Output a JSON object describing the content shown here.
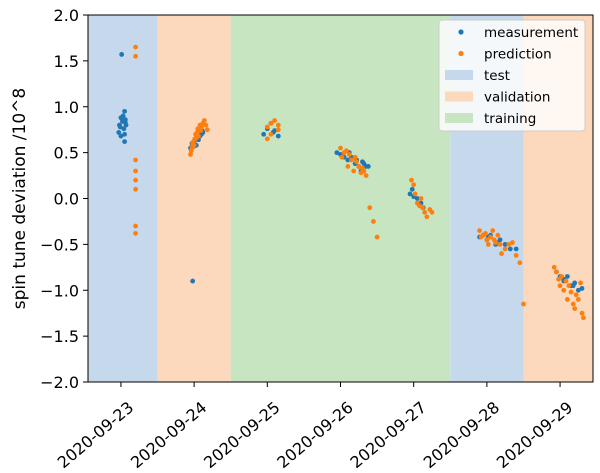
{
  "chart_data": {
    "type": "scatter",
    "title": "",
    "xlabel": "",
    "ylabel": "spin tune deviation /10^8",
    "ylim": [
      -2.0,
      2.0
    ],
    "xlim": [
      -0.45,
      6.45
    ],
    "x_unit": "days since 2020-09-23",
    "grid": false,
    "legend_position": "top-right",
    "x_ticks": [
      {
        "value": 0,
        "label": "2020-09-23"
      },
      {
        "value": 1,
        "label": "2020-09-24"
      },
      {
        "value": 2,
        "label": "2020-09-25"
      },
      {
        "value": 3,
        "label": "2020-09-26"
      },
      {
        "value": 4,
        "label": "2020-09-27"
      },
      {
        "value": 5,
        "label": "2020-09-28"
      },
      {
        "value": 6,
        "label": "2020-09-29"
      }
    ],
    "y_ticks": [
      {
        "value": 2.0,
        "label": "2.0"
      },
      {
        "value": 1.5,
        "label": "1.5"
      },
      {
        "value": 1.0,
        "label": "1.0"
      },
      {
        "value": 0.5,
        "label": "0.5"
      },
      {
        "value": 0.0,
        "label": "0.0"
      },
      {
        "value": -0.5,
        "label": "−0.5"
      },
      {
        "value": -1.0,
        "label": "−1.0"
      },
      {
        "value": -1.5,
        "label": "−1.5"
      },
      {
        "value": -2.0,
        "label": "−2.0"
      }
    ],
    "regions": [
      {
        "name": "test",
        "x0": -0.45,
        "x1": 0.5,
        "color": "#c6d9ec"
      },
      {
        "name": "validation",
        "x0": 0.5,
        "x1": 1.5,
        "color": "#fcd8bd"
      },
      {
        "name": "training",
        "x0": 1.5,
        "x1": 4.5,
        "color": "#c7e5c1"
      },
      {
        "name": "test",
        "x0": 4.5,
        "x1": 5.5,
        "color": "#c6d9ec"
      },
      {
        "name": "validation",
        "x0": 5.5,
        "x1": 6.45,
        "color": "#fcd8bd"
      }
    ],
    "series": [
      {
        "name": "measurement",
        "color": "#1f77b4",
        "x": [
          -0.03,
          -0.02,
          0.0,
          0.02,
          0.04,
          0.06,
          -0.01,
          0.03,
          0.05,
          0.07,
          0.01,
          0.05,
          0.0,
          0.06,
          0.05,
          0.95,
          0.97,
          1.0,
          1.03,
          1.06,
          1.1,
          1.12,
          0.98,
          1.05,
          1.08,
          1.11,
          1.0,
          1.95,
          2.0,
          2.05,
          2.08,
          2.1,
          2.15,
          2.95,
          3.0,
          3.05,
          3.1,
          3.12,
          3.2,
          3.25,
          3.3,
          3.35,
          3.15,
          3.22,
          3.28,
          3.32,
          3.38,
          3.95,
          3.98,
          4.05,
          4.1,
          4.13,
          4.0,
          4.9,
          4.95,
          5.0,
          5.05,
          5.12,
          5.18,
          5.25,
          5.32,
          5.4,
          5.02,
          5.15,
          5.95,
          6.0,
          6.05,
          6.1,
          6.15,
          6.2,
          6.25,
          6.3,
          6.05,
          6.18
        ],
        "y": [
          0.72,
          0.8,
          0.88,
          0.84,
          0.76,
          0.83,
          0.78,
          0.9,
          0.7,
          0.8,
          1.57,
          0.95,
          0.68,
          0.86,
          0.62,
          0.55,
          0.6,
          0.62,
          0.58,
          0.64,
          0.7,
          0.72,
          -0.9,
          0.66,
          0.68,
          0.74,
          0.57,
          0.7,
          0.76,
          0.82,
          0.72,
          0.74,
          0.68,
          0.5,
          0.48,
          0.45,
          0.42,
          0.5,
          0.38,
          0.35,
          0.4,
          0.35,
          0.45,
          0.42,
          0.3,
          0.38,
          0.35,
          0.05,
          0.1,
          0.0,
          -0.05,
          -0.1,
          0.02,
          -0.42,
          -0.4,
          -0.45,
          -0.4,
          -0.5,
          -0.45,
          -0.5,
          -0.55,
          -0.55,
          -0.42,
          -0.48,
          -0.8,
          -0.85,
          -0.9,
          -0.85,
          -0.95,
          -0.92,
          -1.0,
          -0.98,
          -0.88,
          -0.95
        ]
      },
      {
        "name": "prediction",
        "color": "#ff7f0e",
        "x": [
          0.2,
          0.2,
          0.2,
          0.2,
          0.2,
          0.2,
          0.2,
          0.2,
          0.95,
          0.96,
          0.97,
          0.98,
          0.99,
          1.0,
          1.01,
          1.02,
          1.03,
          1.04,
          1.05,
          1.06,
          1.07,
          1.08,
          1.09,
          1.1,
          1.12,
          1.14,
          1.16,
          1.18,
          2.0,
          2.0,
          2.05,
          2.05,
          2.1,
          2.15,
          2.15,
          3.0,
          3.02,
          3.05,
          3.08,
          3.1,
          3.12,
          3.15,
          3.18,
          3.2,
          3.22,
          3.25,
          3.28,
          3.3,
          3.32,
          3.35,
          3.4,
          3.45,
          3.5,
          3.97,
          4.0,
          4.02,
          4.05,
          4.08,
          4.1,
          4.12,
          4.15,
          4.18,
          4.22,
          4.25,
          4.9,
          4.92,
          4.95,
          4.98,
          5.0,
          5.02,
          5.05,
          5.08,
          5.1,
          5.12,
          5.15,
          5.18,
          5.2,
          5.25,
          5.3,
          5.35,
          5.4,
          5.45,
          5.5,
          5.92,
          5.95,
          5.98,
          6.0,
          6.02,
          6.05,
          6.08,
          6.1,
          6.12,
          6.15,
          6.18,
          6.2,
          6.22,
          6.25,
          6.28,
          6.3,
          6.32
        ],
        "y": [
          1.55,
          1.65,
          0.3,
          0.42,
          0.2,
          0.1,
          -0.3,
          -0.38,
          0.48,
          0.52,
          0.55,
          0.6,
          0.62,
          0.58,
          0.65,
          0.7,
          0.66,
          0.72,
          0.76,
          0.68,
          0.75,
          0.8,
          0.74,
          0.78,
          0.82,
          0.85,
          0.8,
          0.75,
          0.65,
          0.78,
          0.82,
          0.7,
          0.85,
          0.8,
          0.75,
          0.55,
          0.45,
          0.5,
          0.52,
          0.35,
          0.48,
          0.42,
          0.3,
          0.45,
          0.4,
          0.35,
          0.28,
          0.33,
          0.3,
          0.25,
          -0.1,
          -0.25,
          -0.42,
          0.2,
          0.15,
          0.05,
          -0.05,
          -0.08,
          0.0,
          -0.1,
          -0.15,
          -0.2,
          -0.12,
          -0.15,
          -0.35,
          -0.42,
          -0.4,
          -0.38,
          -0.45,
          -0.5,
          -0.42,
          -0.35,
          -0.45,
          -0.48,
          -0.4,
          -0.5,
          -0.6,
          -0.55,
          -0.5,
          -0.48,
          -0.62,
          -0.7,
          -1.15,
          -0.75,
          -0.8,
          -0.88,
          -0.95,
          -0.85,
          -1.0,
          -0.9,
          -1.1,
          -0.95,
          -1.02,
          -1.15,
          -1.2,
          -1.05,
          -1.1,
          -0.92,
          -1.25,
          -1.3
        ]
      }
    ]
  },
  "legend": {
    "items": [
      {
        "label": "measurement",
        "kind": "marker",
        "color": "#1f77b4"
      },
      {
        "label": "prediction",
        "kind": "marker",
        "color": "#ff7f0e"
      },
      {
        "label": "test",
        "kind": "patch",
        "color": "#c6d9ec"
      },
      {
        "label": "validation",
        "kind": "patch",
        "color": "#fcd8bd"
      },
      {
        "label": "training",
        "kind": "patch",
        "color": "#c7e5c1"
      }
    ]
  }
}
